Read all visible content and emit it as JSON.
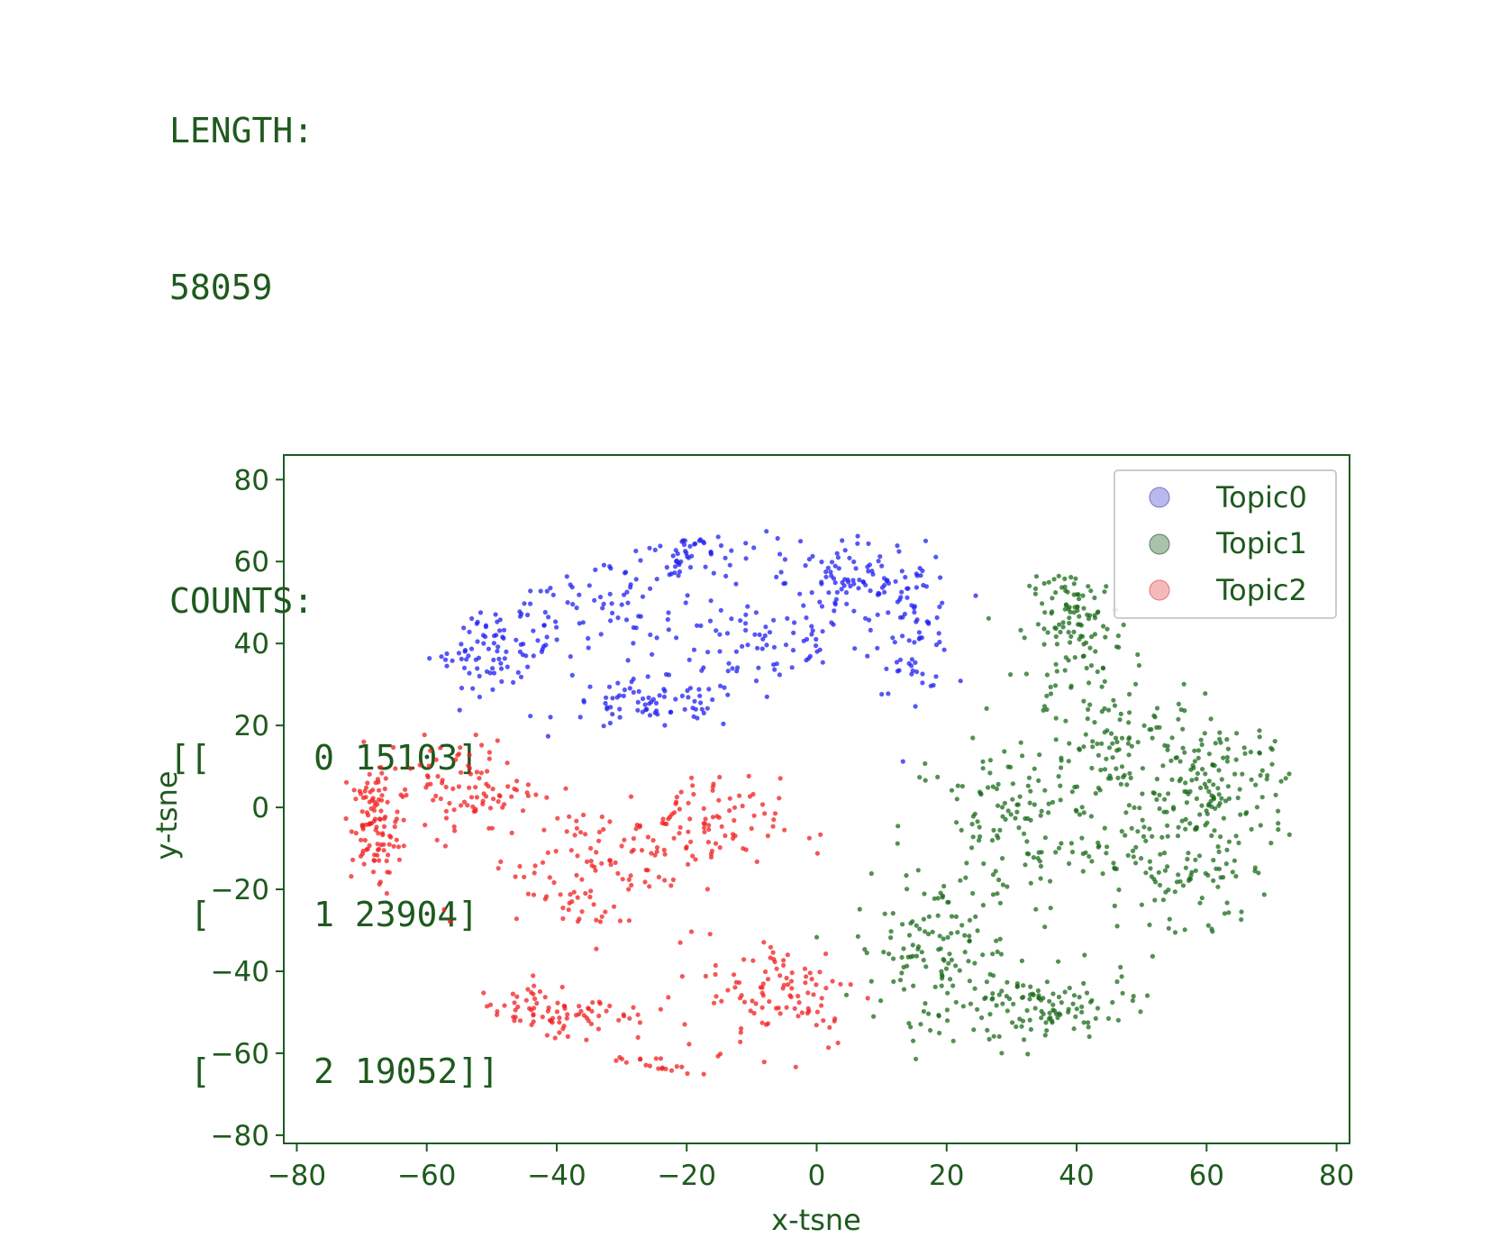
{
  "console": {
    "length_label": "LENGTH:",
    "length_value": "58059",
    "counts_label": "COUNTS:",
    "counts_rows": [
      "[[     0 15103]",
      " [     1 23904]",
      " [     2 19052]]"
    ]
  },
  "chart_data": {
    "type": "scatter",
    "xlabel": "x-tsne",
    "ylabel": "y-tsne",
    "xlim": [
      -82,
      82
    ],
    "ylim": [
      -82,
      86
    ],
    "xticks": [
      -80,
      -60,
      -40,
      -20,
      0,
      20,
      40,
      60,
      80
    ],
    "yticks": [
      -80,
      -60,
      -40,
      -20,
      0,
      20,
      40,
      60,
      80
    ],
    "grid": false,
    "legend_position": "top-right",
    "series": [
      {
        "name": "Topic0",
        "color": "#1f1ff0",
        "count": 15103,
        "clusters": [
          {
            "x": -35,
            "y": 48,
            "sx": 14,
            "sy": 10
          },
          {
            "x": -10,
            "y": 40,
            "sx": 14,
            "sy": 9
          },
          {
            "x": -20,
            "y": 62,
            "sx": 14,
            "sy": 6
          },
          {
            "x": -50,
            "y": 38,
            "sx": 8,
            "sy": 7
          },
          {
            "x": 5,
            "y": 55,
            "sx": 8,
            "sy": 8
          },
          {
            "x": -25,
            "y": 25,
            "sx": 12,
            "sy": 5
          },
          {
            "x": 15,
            "y": 45,
            "sx": 5,
            "sy": 14
          }
        ]
      },
      {
        "name": "Topic1",
        "color": "#1a6b1a",
        "count": 23904,
        "clusters": [
          {
            "x": 30,
            "y": -5,
            "sx": 14,
            "sy": 18
          },
          {
            "x": 45,
            "y": 15,
            "sx": 12,
            "sy": 14
          },
          {
            "x": 55,
            "y": -15,
            "sx": 12,
            "sy": 16
          },
          {
            "x": 18,
            "y": -35,
            "sx": 10,
            "sy": 14
          },
          {
            "x": 40,
            "y": 45,
            "sx": 6,
            "sy": 12
          },
          {
            "x": 62,
            "y": 5,
            "sx": 9,
            "sy": 14
          },
          {
            "x": 35,
            "y": -50,
            "sx": 12,
            "sy": 8
          }
        ]
      },
      {
        "name": "Topic2",
        "color": "#f01f1f",
        "count": 19052,
        "clusters": [
          {
            "x": -35,
            "y": -15,
            "sx": 14,
            "sy": 14
          },
          {
            "x": -20,
            "y": -5,
            "sx": 12,
            "sy": 10
          },
          {
            "x": -55,
            "y": 5,
            "sx": 10,
            "sy": 10
          },
          {
            "x": -5,
            "y": -45,
            "sx": 10,
            "sy": 12
          },
          {
            "x": -40,
            "y": -50,
            "sx": 12,
            "sy": 6
          },
          {
            "x": -30,
            "y": -65,
            "sx": 8,
            "sy": 4
          },
          {
            "x": -68,
            "y": -5,
            "sx": 3,
            "sy": 12
          }
        ]
      }
    ]
  }
}
